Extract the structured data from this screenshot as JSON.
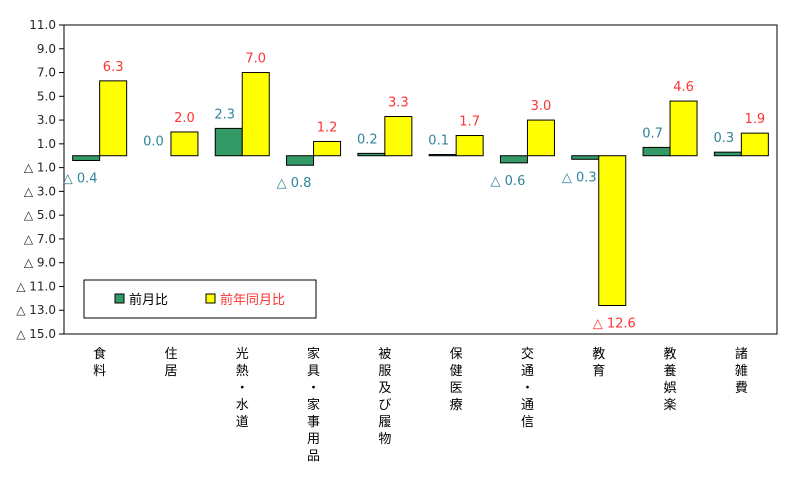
{
  "chart_data": {
    "type": "bar",
    "categories": [
      [
        "食",
        "料"
      ],
      [
        "住",
        "居"
      ],
      [
        "光",
        "熱",
        "・",
        "水",
        "道"
      ],
      [
        "家",
        "具",
        "・",
        "家",
        "事",
        "用",
        "品"
      ],
      [
        "被",
        "服",
        "及",
        "び",
        "履",
        "物"
      ],
      [
        "保",
        "健",
        "医",
        "療"
      ],
      [
        "交",
        "通",
        "・",
        "通",
        "信"
      ],
      [
        "教",
        "育"
      ],
      [
        "教",
        "養",
        "娯",
        "楽"
      ],
      [
        "諸",
        "雑",
        "費"
      ]
    ],
    "series": [
      {
        "name": "前月比",
        "values": [
          -0.4,
          0.0,
          2.3,
          -0.8,
          0.2,
          0.1,
          -0.6,
          -0.3,
          0.7,
          0.3
        ],
        "labels": [
          "△ 0.4",
          "0.0",
          "2.3",
          "△ 0.8",
          "0.2",
          "0.1",
          "△ 0.6",
          "△ 0.3",
          "0.7",
          "0.3"
        ],
        "color": "#339966",
        "label_color": "#31849B"
      },
      {
        "name": "前年同月比",
        "values": [
          6.3,
          2.0,
          7.0,
          1.2,
          3.3,
          1.7,
          3.0,
          -12.6,
          4.6,
          1.9
        ],
        "labels": [
          "6.3",
          "2.0",
          "7.0",
          "1.2",
          "3.3",
          "1.7",
          "3.0",
          "△ 12.6",
          "4.6",
          "1.9"
        ],
        "color": "#FFFF00",
        "label_color": "#FF3333"
      }
    ],
    "y_ticks": [
      11,
      9,
      7,
      5,
      3,
      1,
      -1,
      -3,
      -5,
      -7,
      -9,
      -11,
      -13,
      -15
    ],
    "y_tick_labels": [
      "11.0",
      "9.0",
      "7.0",
      "5.0",
      "3.0",
      "1.0",
      "△ 1.0",
      "△ 3.0",
      "△ 5.0",
      "△ 7.0",
      "△ 9.0",
      "△ 11.0",
      "△ 13.0",
      "△ 15.0"
    ],
    "ylim": [
      -15,
      11
    ],
    "grid": false,
    "legend": {
      "position": "bottom-left",
      "entries": [
        "前月比",
        "前年同月比"
      ]
    },
    "title": "",
    "xlabel": "",
    "ylabel": ""
  }
}
